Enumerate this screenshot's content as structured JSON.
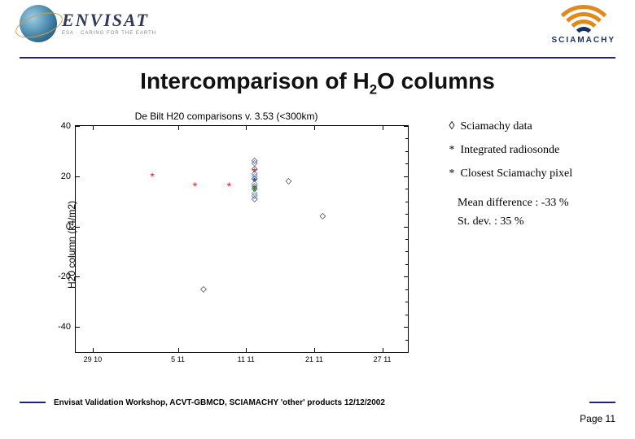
{
  "header": {
    "envisat": "ENVISAT",
    "envisat_sub": "ESA · CARING FOR THE EARTH",
    "sciamachy": "SCIAMACHY",
    "rule_color": "#1d2675"
  },
  "title": {
    "pre": "Intercomparison of H",
    "sub": "2",
    "post": "O columns"
  },
  "chart": {
    "type": "scatter",
    "title": "De Bilt H20 comparisons v. 3.53 (<300km)",
    "ylabel": "H20 column (k4/m2)",
    "ylim": [
      -50,
      40
    ],
    "yticks": [
      -40,
      -20,
      0,
      20,
      40
    ],
    "xlim": [
      0,
      39
    ],
    "xticks": [
      2,
      12,
      20,
      28,
      36
    ],
    "xticklabels": [
      "29 10",
      "5 11",
      "11 11",
      "21 11",
      "27 11"
    ],
    "background_color": "#ffffff",
    "axis_color": "#000000",
    "tick_fontsize": 11,
    "title_fontsize": 12,
    "points": {
      "diamond_black": {
        "symbol": "◇",
        "color": "#000000",
        "size": 10,
        "xy": [
          [
            21,
            26
          ],
          [
            21,
            23
          ],
          [
            21,
            19
          ],
          [
            21,
            15
          ],
          [
            21,
            11
          ],
          [
            25,
            18
          ],
          [
            29,
            4
          ],
          [
            15,
            -25
          ]
        ]
      },
      "diamond_blue": {
        "symbol": "◇",
        "color": "#2020e0",
        "size": 10,
        "xy": [
          [
            21,
            25
          ],
          [
            21,
            21
          ],
          [
            21,
            16
          ],
          [
            21,
            12
          ]
        ]
      },
      "diamond_green": {
        "symbol": "◇",
        "color": "#109030",
        "size": 10,
        "xy": [
          [
            21,
            20
          ],
          [
            21,
            17
          ],
          [
            21,
            13
          ]
        ]
      },
      "star_red": {
        "symbol": "*",
        "color": "#e02020",
        "size": 14,
        "xy": [
          [
            9,
            20
          ],
          [
            14,
            16
          ],
          [
            18,
            16
          ],
          [
            21,
            22
          ],
          [
            21,
            15
          ]
        ]
      },
      "star_blue": {
        "symbol": "*",
        "color": "#2020e0",
        "size": 14,
        "xy": [
          [
            21,
            18
          ]
        ]
      },
      "star_green": {
        "symbol": "*",
        "color": "#109030",
        "size": 14,
        "xy": [
          [
            21,
            14
          ]
        ]
      }
    }
  },
  "legend": {
    "items": [
      {
        "symbol": "◊",
        "color": "#000000",
        "text": "Sciamachy data"
      },
      {
        "symbol": "*",
        "color": "#000000",
        "text": " Integrated radiosonde"
      },
      {
        "symbol": "*",
        "color": "#000000",
        "text": "Closest Sciamachy pixel"
      }
    ]
  },
  "stats": {
    "mean_diff": "Mean difference : -33 %",
    "st_dev": "St. dev. : 35 %"
  },
  "footer": {
    "text": "Envisat Validation Workshop, ACVT-GBMCD,  SCIAMACHY 'other' products 12/12/2002",
    "page_label": "Page ",
    "page_num": "11"
  }
}
